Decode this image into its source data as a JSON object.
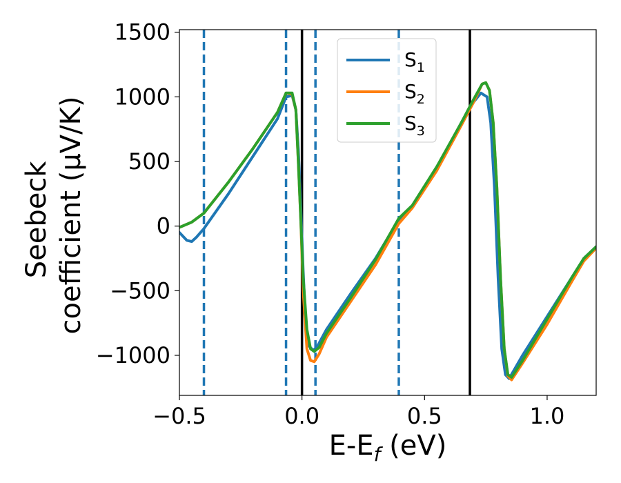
{
  "chart_data": {
    "type": "line",
    "title": "",
    "xlabel": "E-E",
    "xlabel_sub": "f",
    "xlabel_unit": " (eV)",
    "ylabel_line1": "Seebeck",
    "ylabel_line2": "coefficient  (μV/K)",
    "xlim": [
      -0.5,
      1.2
    ],
    "ylim": [
      -1310,
      1520
    ],
    "xticks": [
      -0.5,
      0.0,
      0.5,
      1.0
    ],
    "xtick_labels": [
      "−0.5",
      "0.0",
      "0.5",
      "1.0"
    ],
    "yticks": [
      -1000,
      -500,
      0,
      500,
      1000,
      1500
    ],
    "ytick_labels": [
      "−1000",
      "−500",
      "0",
      "500",
      "1000",
      "1500"
    ],
    "grid": false,
    "legend_position": "top-center",
    "vlines_dashed": {
      "x": [
        -0.4,
        -0.065,
        0.055,
        0.395
      ],
      "color": "#1f77b4"
    },
    "vlines_solid": {
      "x": [
        0.0,
        0.685
      ],
      "color": "#000000"
    },
    "series": [
      {
        "name": "S",
        "name_sub": "1",
        "color": "#1f77b4",
        "points": [
          [
            -0.5,
            -50
          ],
          [
            -0.47,
            -110
          ],
          [
            -0.45,
            -120
          ],
          [
            -0.43,
            -85
          ],
          [
            -0.4,
            -20
          ],
          [
            -0.3,
            250
          ],
          [
            -0.2,
            540
          ],
          [
            -0.1,
            830
          ],
          [
            -0.065,
            1000
          ],
          [
            -0.04,
            1010
          ],
          [
            -0.025,
            900
          ],
          [
            -0.015,
            600
          ],
          [
            -0.005,
            150
          ],
          [
            0.005,
            -350
          ],
          [
            0.015,
            -750
          ],
          [
            0.025,
            -920
          ],
          [
            0.045,
            -960
          ],
          [
            0.06,
            -940
          ],
          [
            0.1,
            -800
          ],
          [
            0.2,
            -520
          ],
          [
            0.3,
            -250
          ],
          [
            0.395,
            50
          ],
          [
            0.45,
            150
          ],
          [
            0.55,
            440
          ],
          [
            0.65,
            800
          ],
          [
            0.7,
            960
          ],
          [
            0.73,
            1030
          ],
          [
            0.755,
            1000
          ],
          [
            0.77,
            800
          ],
          [
            0.785,
            300
          ],
          [
            0.8,
            -400
          ],
          [
            0.815,
            -950
          ],
          [
            0.83,
            -1150
          ],
          [
            0.845,
            -1180
          ],
          [
            0.9,
            -1000
          ],
          [
            1.0,
            -700
          ],
          [
            1.1,
            -400
          ],
          [
            1.15,
            -250
          ],
          [
            1.2,
            -160
          ]
        ]
      },
      {
        "name": "S",
        "name_sub": "2",
        "color": "#ff7f0e",
        "points": [
          [
            -0.5,
            -10
          ],
          [
            -0.45,
            30
          ],
          [
            -0.4,
            100
          ],
          [
            -0.3,
            340
          ],
          [
            -0.2,
            600
          ],
          [
            -0.1,
            880
          ],
          [
            -0.065,
            1030
          ],
          [
            -0.04,
            1020
          ],
          [
            -0.025,
            900
          ],
          [
            -0.015,
            500
          ],
          [
            -0.005,
            50
          ],
          [
            0.005,
            -500
          ],
          [
            0.02,
            -950
          ],
          [
            0.035,
            -1040
          ],
          [
            0.05,
            -1050
          ],
          [
            0.07,
            -990
          ],
          [
            0.1,
            -860
          ],
          [
            0.2,
            -580
          ],
          [
            0.3,
            -300
          ],
          [
            0.395,
            20
          ],
          [
            0.45,
            140
          ],
          [
            0.55,
            430
          ],
          [
            0.65,
            780
          ],
          [
            0.7,
            960
          ],
          [
            0.735,
            1100
          ],
          [
            0.75,
            1110
          ],
          [
            0.765,
            1050
          ],
          [
            0.78,
            800
          ],
          [
            0.795,
            300
          ],
          [
            0.81,
            -400
          ],
          [
            0.825,
            -950
          ],
          [
            0.84,
            -1160
          ],
          [
            0.855,
            -1190
          ],
          [
            0.9,
            -1060
          ],
          [
            1.0,
            -760
          ],
          [
            1.1,
            -430
          ],
          [
            1.15,
            -270
          ],
          [
            1.2,
            -170
          ]
        ]
      },
      {
        "name": "S",
        "name_sub": "3",
        "color": "#2ca02c",
        "points": [
          [
            -0.5,
            -10
          ],
          [
            -0.45,
            30
          ],
          [
            -0.4,
            100
          ],
          [
            -0.3,
            340
          ],
          [
            -0.2,
            600
          ],
          [
            -0.1,
            880
          ],
          [
            -0.065,
            1030
          ],
          [
            -0.04,
            1030
          ],
          [
            -0.025,
            900
          ],
          [
            -0.015,
            500
          ],
          [
            -0.005,
            50
          ],
          [
            0.005,
            -400
          ],
          [
            0.02,
            -800
          ],
          [
            0.035,
            -950
          ],
          [
            0.05,
            -970
          ],
          [
            0.07,
            -940
          ],
          [
            0.1,
            -830
          ],
          [
            0.2,
            -550
          ],
          [
            0.3,
            -260
          ],
          [
            0.395,
            60
          ],
          [
            0.45,
            160
          ],
          [
            0.55,
            460
          ],
          [
            0.65,
            800
          ],
          [
            0.7,
            980
          ],
          [
            0.735,
            1100
          ],
          [
            0.75,
            1110
          ],
          [
            0.765,
            1050
          ],
          [
            0.78,
            800
          ],
          [
            0.795,
            300
          ],
          [
            0.81,
            -400
          ],
          [
            0.825,
            -950
          ],
          [
            0.84,
            -1150
          ],
          [
            0.855,
            -1170
          ],
          [
            0.9,
            -1040
          ],
          [
            1.0,
            -720
          ],
          [
            1.1,
            -400
          ],
          [
            1.15,
            -250
          ],
          [
            1.2,
            -160
          ]
        ]
      }
    ]
  }
}
